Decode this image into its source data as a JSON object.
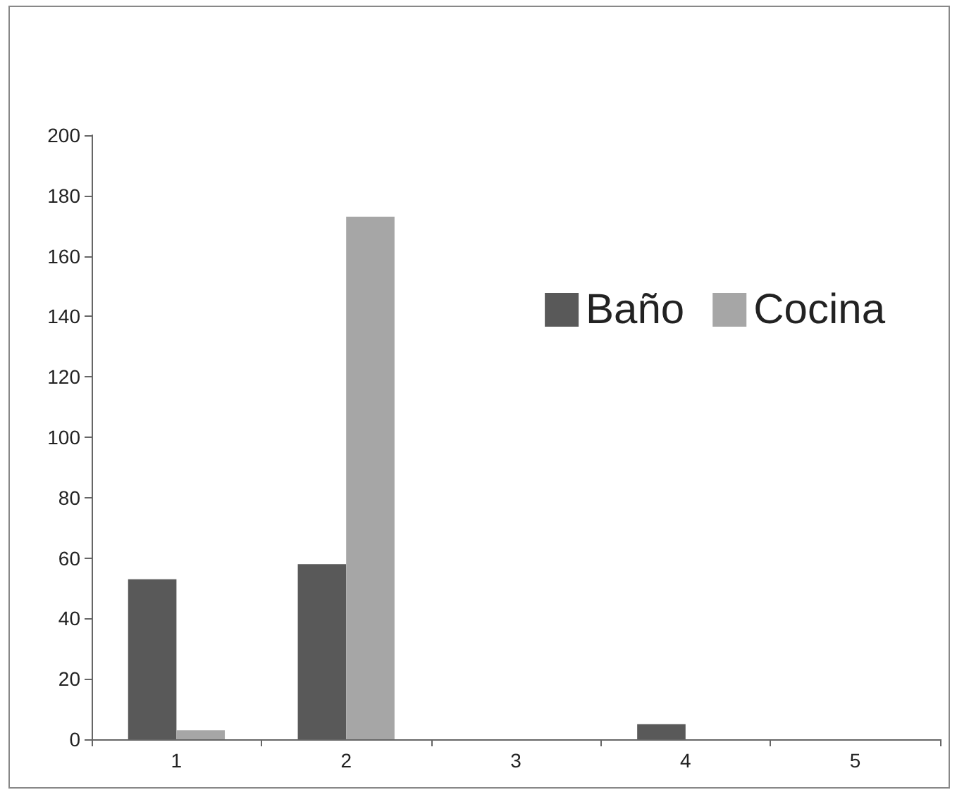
{
  "chart_data": {
    "type": "bar",
    "categories": [
      "1",
      "2",
      "3",
      "4",
      "5"
    ],
    "series": [
      {
        "name": "Baño",
        "color": "#595959",
        "values": [
          53,
          58,
          0,
          5,
          0
        ]
      },
      {
        "name": "Cocina",
        "color": "#a6a6a6",
        "values": [
          3,
          173,
          0,
          0,
          0
        ]
      }
    ],
    "ylim": [
      0,
      200
    ],
    "yticks": [
      0,
      20,
      40,
      60,
      80,
      100,
      120,
      140,
      160,
      180,
      200
    ],
    "grid": false,
    "legend": "right"
  }
}
